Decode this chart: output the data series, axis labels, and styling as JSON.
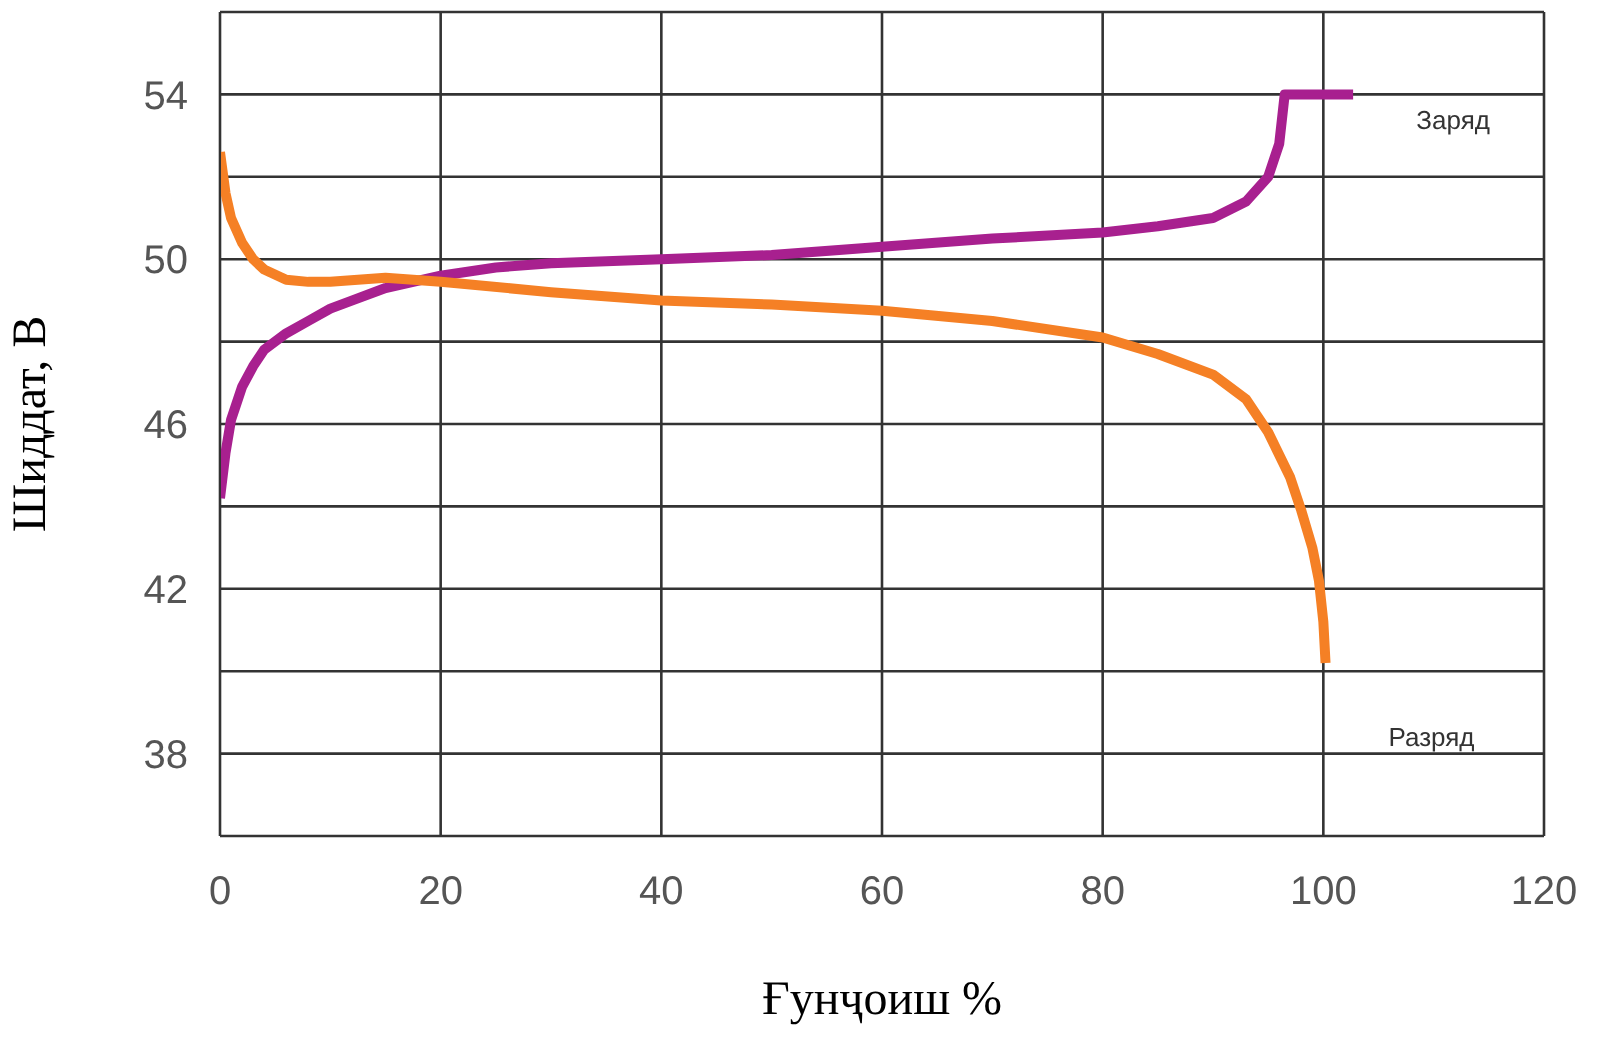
{
  "chart_data": {
    "type": "line",
    "xlabel": "Ғунҷоиш %",
    "ylabel": "Шиддат, В",
    "xlim": [
      0,
      120
    ],
    "xticks": [
      0,
      20,
      40,
      60,
      80,
      100,
      120
    ],
    "ylim": [
      36,
      56
    ],
    "yticks": [
      {
        "value": 36,
        "label": null
      },
      38,
      {
        "value": 40,
        "label": null
      },
      42,
      {
        "value": 44,
        "label": null
      },
      46,
      {
        "value": 48,
        "label": null
      },
      50,
      {
        "value": 52,
        "label": null
      },
      54,
      {
        "value": 56,
        "label": null
      }
    ],
    "grid": true,
    "legend": false,
    "marker": "none",
    "line_style": "solid",
    "series": [
      {
        "name": "Заряд",
        "color": "#a8208f",
        "x": [
          0,
          0.5,
          1,
          2,
          3,
          4,
          6,
          8,
          10,
          12,
          15,
          20,
          25,
          30,
          40,
          50,
          60,
          70,
          80,
          85,
          90,
          93,
          95,
          96,
          96.5,
          100,
          102.7
        ],
        "values": [
          44.2,
          45.3,
          46.1,
          46.9,
          47.4,
          47.8,
          48.2,
          48.5,
          48.8,
          49.0,
          49.3,
          49.6,
          49.8,
          49.9,
          50.0,
          50.1,
          50.3,
          50.5,
          50.65,
          50.8,
          51.0,
          51.4,
          52.0,
          52.8,
          54.0,
          54.0,
          54.0
        ]
      },
      {
        "name": "Разряд",
        "color": "#f58025",
        "x": [
          0,
          0.5,
          1,
          2,
          3,
          4,
          6,
          8,
          10,
          15,
          20,
          30,
          40,
          50,
          60,
          70,
          80,
          85,
          90,
          93,
          95,
          97,
          98,
          99,
          99.6,
          100,
          100.2
        ],
        "values": [
          52.6,
          51.6,
          51.0,
          50.4,
          50.0,
          49.75,
          49.5,
          49.45,
          49.45,
          49.55,
          49.45,
          49.2,
          49.0,
          48.9,
          48.75,
          48.5,
          48.1,
          47.7,
          47.2,
          46.6,
          45.8,
          44.7,
          43.9,
          43.0,
          42.2,
          41.2,
          40.2
        ]
      }
    ]
  }
}
